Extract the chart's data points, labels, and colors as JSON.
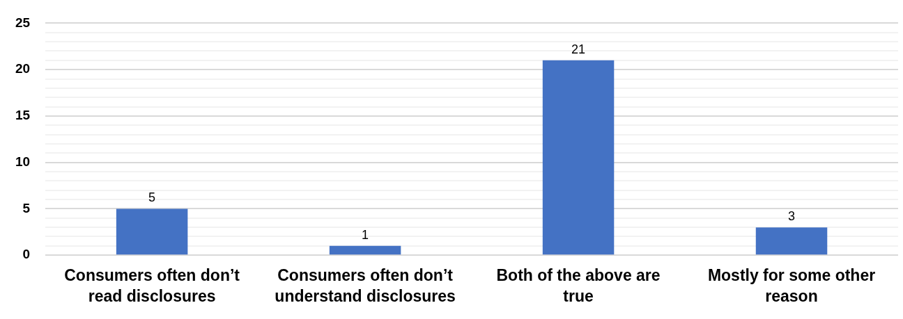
{
  "chart_data": {
    "type": "bar",
    "categories": [
      "Consumers often don’t read disclosures",
      "Consumers often don’t understand disclosures",
      "Both of the above are true",
      "Mostly for some other reason"
    ],
    "values": [
      5,
      1,
      21,
      3
    ],
    "color": "#4472c4",
    "ylim": [
      0,
      25
    ],
    "yticks": [
      0,
      {
        "value": 1,
        "label": null
      },
      {
        "value": 2,
        "label": null
      },
      {
        "value": 3,
        "label": null
      },
      {
        "value": 4,
        "label": null
      },
      5,
      {
        "value": 6,
        "label": null
      },
      {
        "value": 7,
        "label": null
      },
      {
        "value": 8,
        "label": null
      },
      {
        "value": 9,
        "label": null
      },
      10,
      {
        "value": 11,
        "label": null
      },
      {
        "value": 12,
        "label": null
      },
      {
        "value": 13,
        "label": null
      },
      {
        "value": 14,
        "label": null
      },
      15,
      {
        "value": 16,
        "label": null
      },
      {
        "value": 17,
        "label": null
      },
      {
        "value": 18,
        "label": null
      },
      {
        "value": 19,
        "label": null
      },
      20,
      {
        "value": 21,
        "label": null
      },
      {
        "value": 22,
        "label": null
      },
      {
        "value": 23,
        "label": null
      },
      {
        "value": 24,
        "label": null
      },
      25
    ],
    "grid": "y",
    "data_labels": true
  }
}
